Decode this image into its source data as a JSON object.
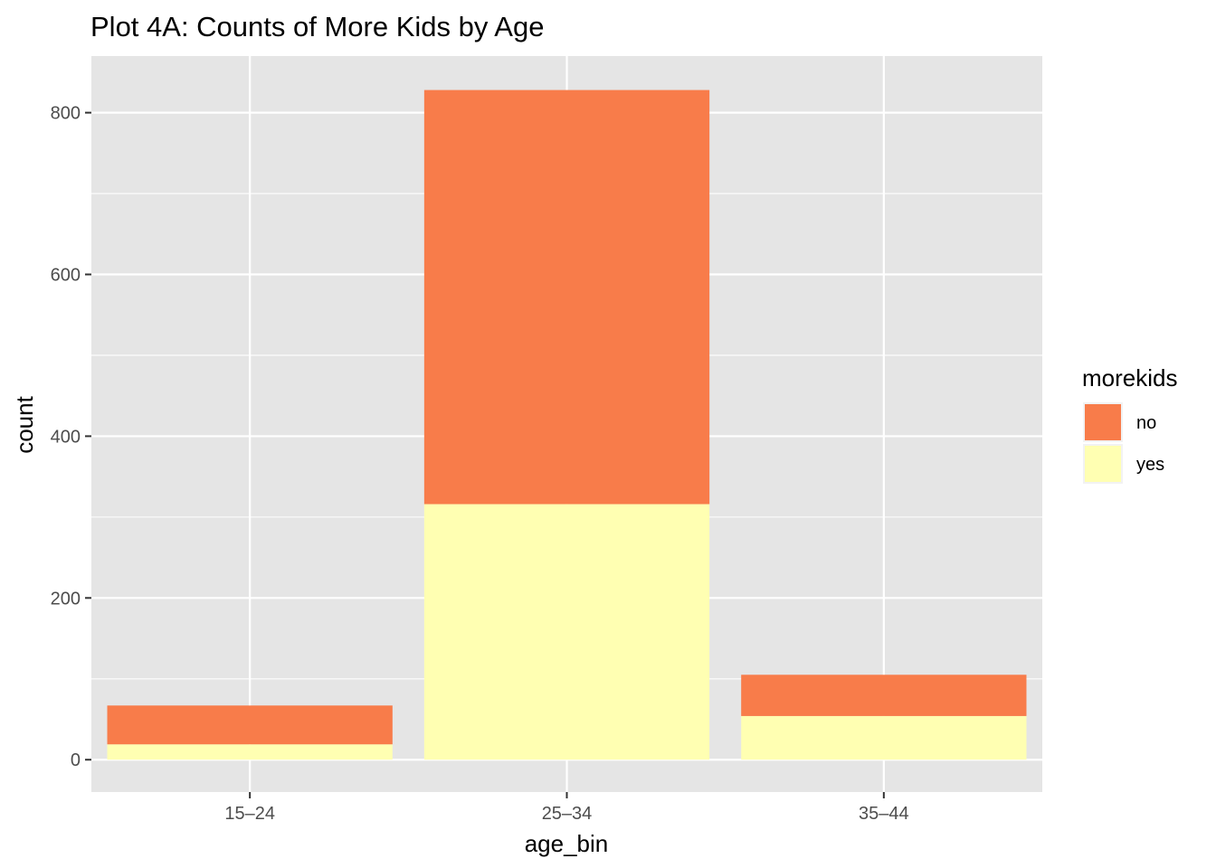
{
  "chart_data": {
    "type": "bar",
    "stacked": true,
    "title": "Plot 4A: Counts of More Kids by Age",
    "xlabel": "age_bin",
    "ylabel": "count",
    "categories": [
      "15–24",
      "25–34",
      "35–44"
    ],
    "series": [
      {
        "name": "no",
        "values": [
          48,
          512,
          51
        ],
        "color": "#F87C4A"
      },
      {
        "name": "yes",
        "values": [
          19,
          316,
          54
        ],
        "color": "#FFFFB2"
      }
    ],
    "ylim": [
      -40,
      870
    ],
    "yticks": [
      0,
      200,
      400,
      600,
      800
    ],
    "grid": true,
    "panel_background": "#E5E5E5",
    "legend": {
      "title": "morekids",
      "position": "right",
      "entries": [
        "no",
        "yes"
      ]
    }
  }
}
